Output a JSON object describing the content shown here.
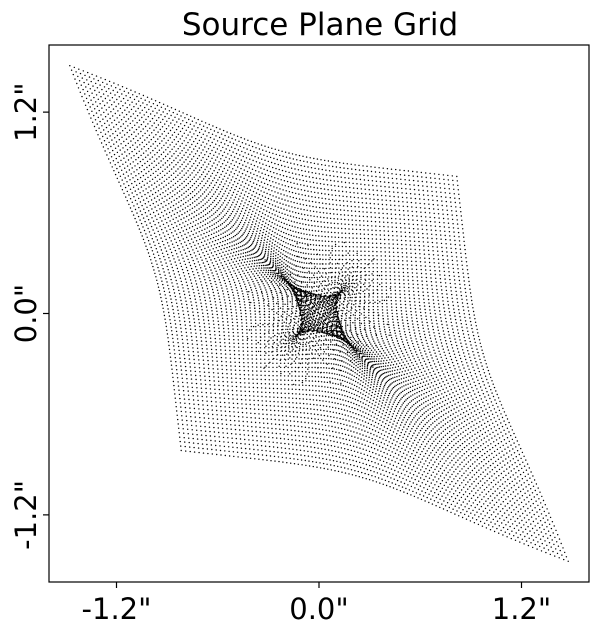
{
  "chart_data": {
    "type": "scatter",
    "title": "Source Plane Grid",
    "xlabel": "",
    "ylabel": "",
    "xlim": [
      -1.6,
      1.6
    ],
    "ylim": [
      -1.6,
      1.6
    ],
    "x_ticks": [
      -1.2,
      0.0,
      1.2
    ],
    "y_ticks": [
      -1.2,
      0.0,
      1.2
    ],
    "x_tick_labels": [
      "-1.2\"",
      "0.0\"",
      "1.2\""
    ],
    "y_tick_labels": [
      "-1.2\"",
      "0.0\"",
      "1.2\""
    ],
    "grid": false,
    "marker_color": "#000000",
    "description_of_points": "lensed uniform image-plane grid traced to the source plane (four-pointed star with dense central caustic)"
  }
}
